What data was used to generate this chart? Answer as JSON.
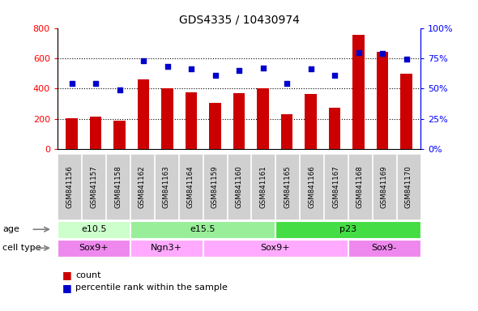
{
  "title": "GDS4335 / 10430974",
  "samples": [
    "GSM841156",
    "GSM841157",
    "GSM841158",
    "GSM841162",
    "GSM841163",
    "GSM841164",
    "GSM841159",
    "GSM841160",
    "GSM841161",
    "GSM841165",
    "GSM841166",
    "GSM841167",
    "GSM841168",
    "GSM841169",
    "GSM841170"
  ],
  "counts": [
    205,
    215,
    190,
    460,
    405,
    375,
    305,
    370,
    405,
    230,
    365,
    275,
    755,
    645,
    500
  ],
  "percentiles": [
    54,
    54,
    49,
    73,
    68,
    66,
    61,
    65,
    67,
    54,
    66,
    61,
    80,
    79,
    74
  ],
  "ylim_left": [
    0,
    800
  ],
  "ylim_right": [
    0,
    100
  ],
  "yticks_left": [
    0,
    200,
    400,
    600,
    800
  ],
  "yticks_right": [
    0,
    25,
    50,
    75,
    100
  ],
  "yticklabels_right": [
    "0%",
    "25%",
    "50%",
    "75%",
    "100%"
  ],
  "bar_color": "#cc0000",
  "dot_color": "#0000cc",
  "age_groups": [
    {
      "label": "e10.5",
      "start": 0,
      "end": 2,
      "color": "#ccffcc"
    },
    {
      "label": "e15.5",
      "start": 3,
      "end": 8,
      "color": "#99ee99"
    },
    {
      "label": "p23",
      "start": 9,
      "end": 14,
      "color": "#44dd44"
    }
  ],
  "cell_type_groups": [
    {
      "label": "Sox9+",
      "start": 0,
      "end": 2,
      "color": "#ee88ee"
    },
    {
      "label": "Ngn3+",
      "start": 3,
      "end": 5,
      "color": "#ffaaff"
    },
    {
      "label": "Sox9+",
      "start": 6,
      "end": 11,
      "color": "#ffaaff"
    },
    {
      "label": "Sox9-",
      "start": 12,
      "end": 14,
      "color": "#ee88ee"
    }
  ],
  "age_label": "age",
  "cell_type_label": "cell type",
  "legend_count": "count",
  "legend_percentile": "percentile rank within the sample",
  "tick_bg_color": "#d0d0d0"
}
